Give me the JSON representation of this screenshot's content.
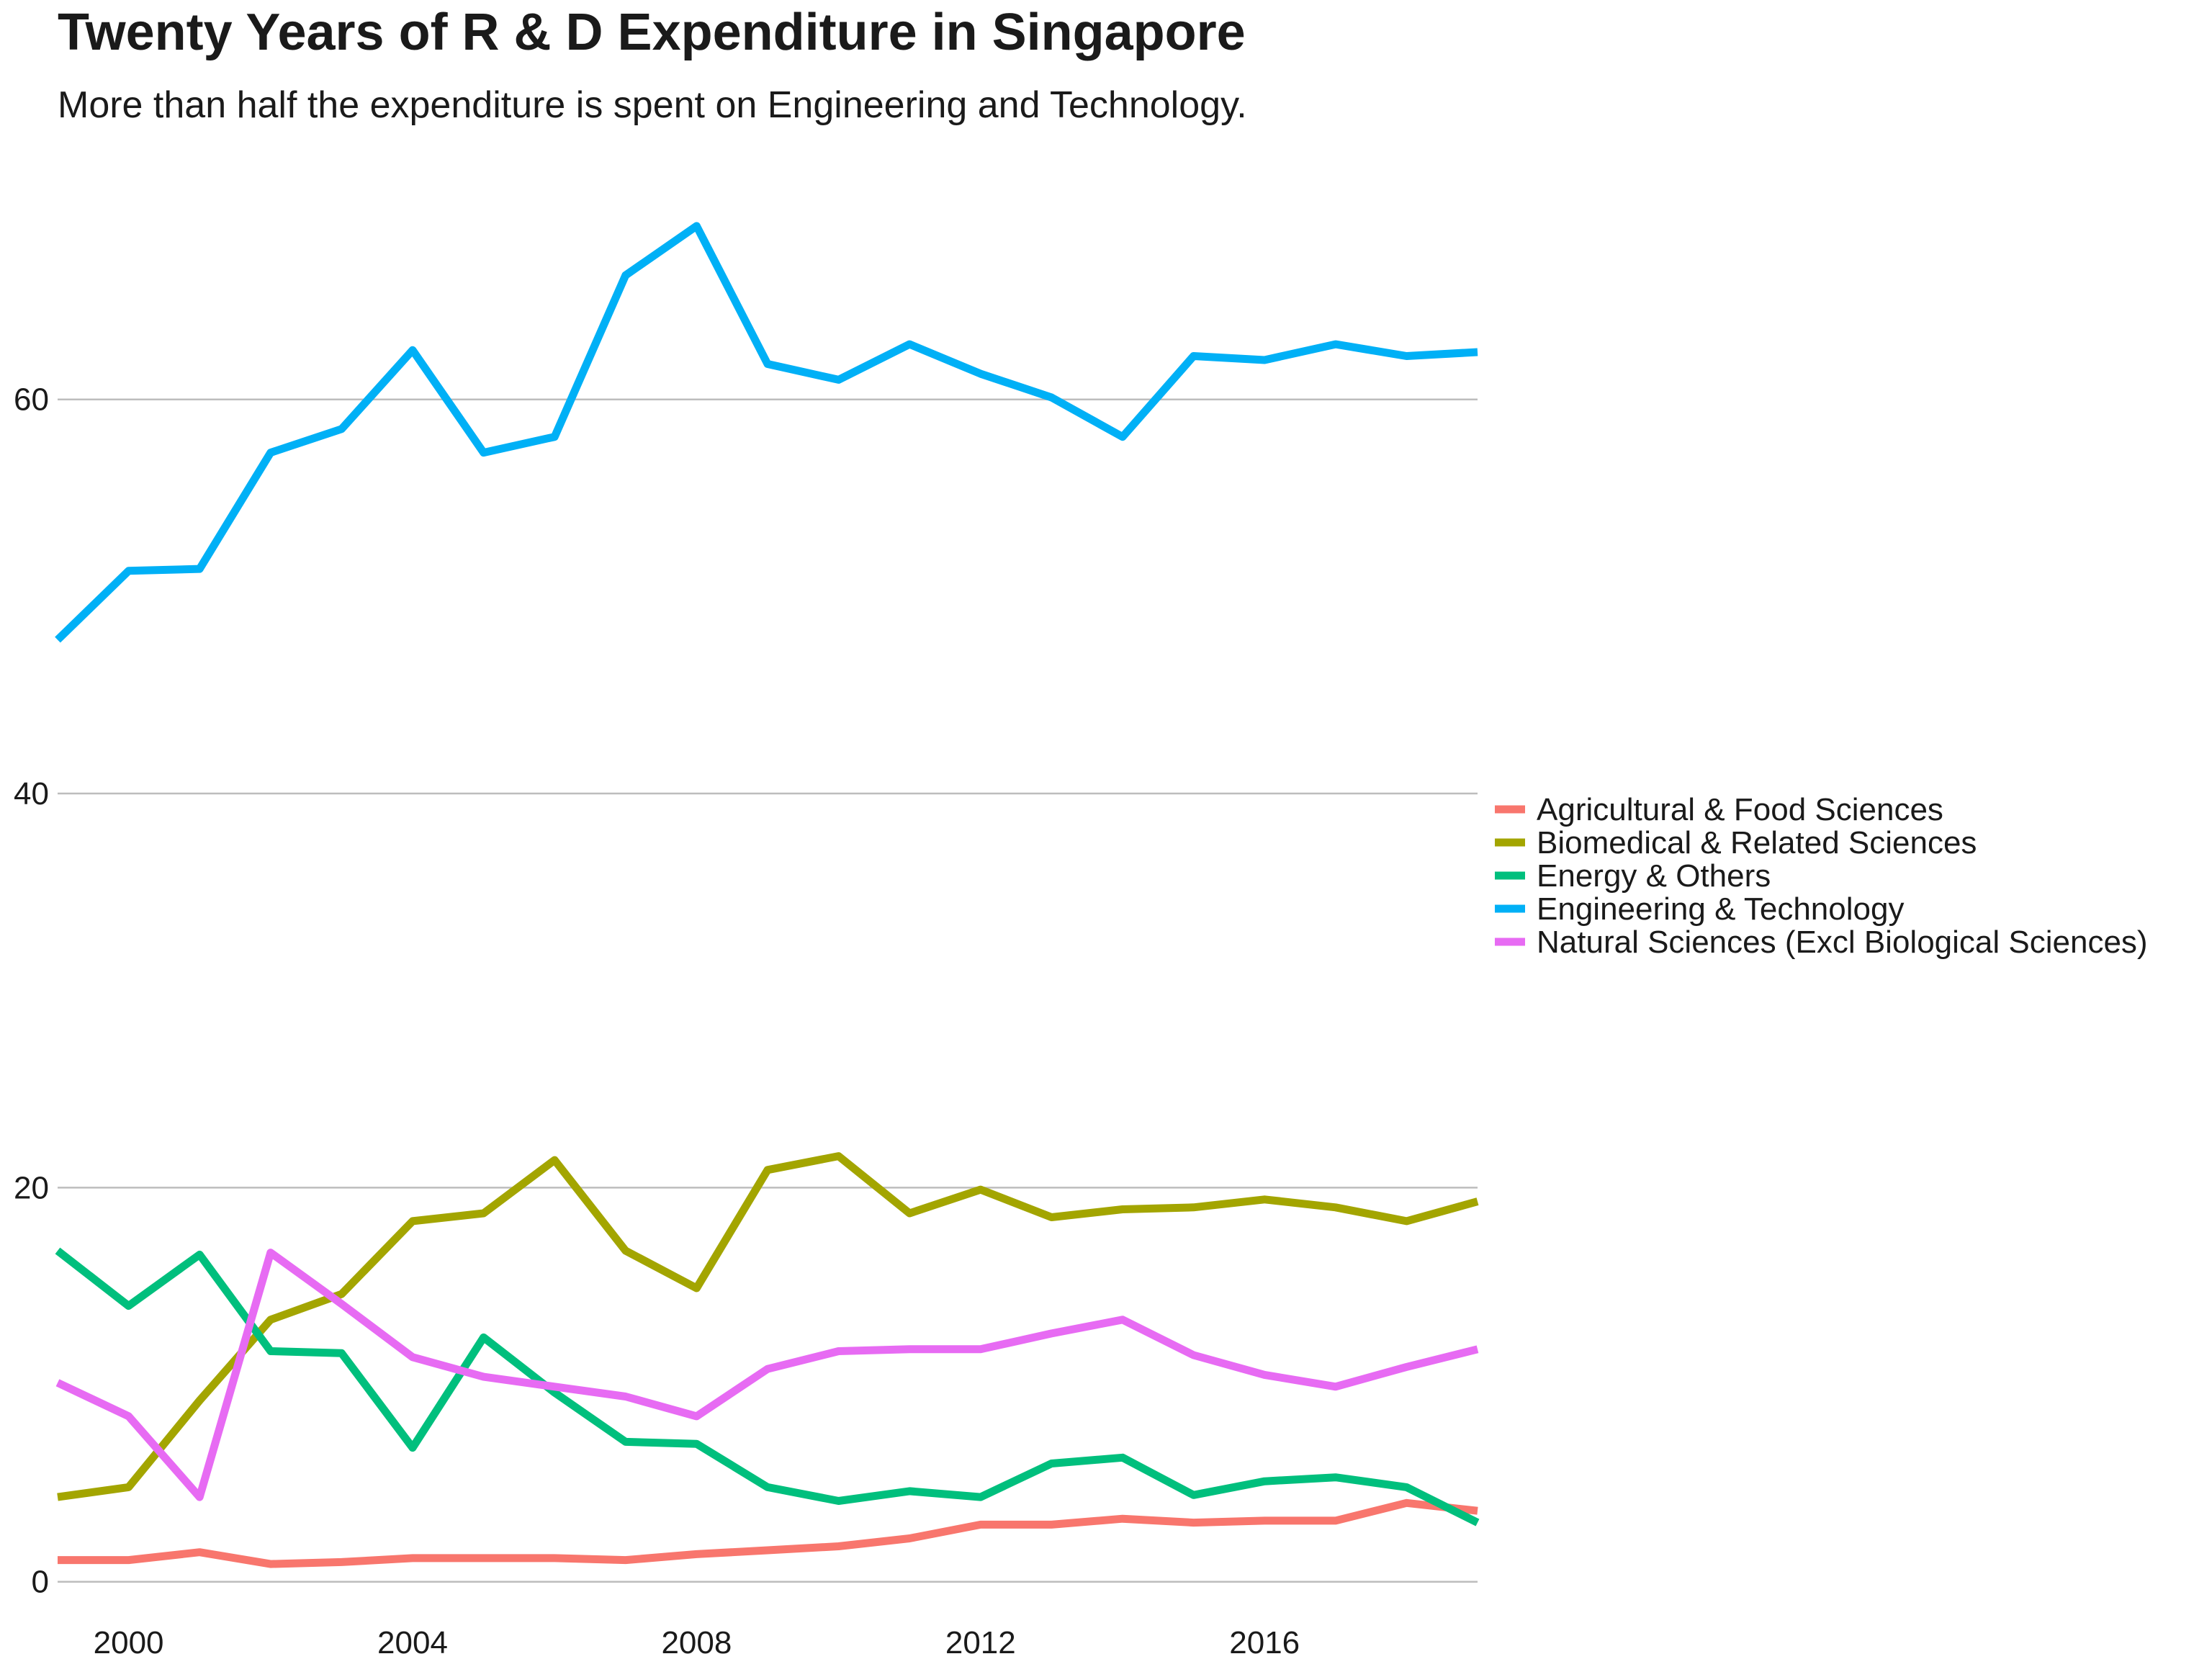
{
  "chart_data": {
    "type": "line",
    "title": "Twenty Years of R & D Expenditure in Singapore",
    "subtitle": "More than half the expenditure is spent on Engineering and Technology.",
    "xlabel": "",
    "ylabel": "",
    "x": [
      1999,
      2000,
      2001,
      2002,
      2003,
      2004,
      2005,
      2006,
      2007,
      2008,
      2009,
      2010,
      2011,
      2012,
      2013,
      2014,
      2015,
      2016,
      2017,
      2018,
      2019
    ],
    "xlim": [
      1999,
      2019
    ],
    "ylim": [
      -1.8,
      71.5
    ],
    "x_ticks": [
      2000,
      2004,
      2008,
      2012,
      2016
    ],
    "y_ticks": [
      0,
      20,
      40,
      60
    ],
    "grid": "horizontal major lines",
    "legend_position": "right",
    "series": [
      {
        "name": "Agricultural & Food Sciences",
        "color": "#F8766D",
        "values": [
          1.1,
          1.1,
          1.5,
          0.9,
          1.0,
          1.2,
          1.2,
          1.2,
          1.1,
          1.4,
          1.6,
          1.8,
          2.2,
          2.9,
          2.9,
          3.2,
          3.0,
          3.1,
          3.1,
          4.0,
          3.6
        ]
      },
      {
        "name": "Biomedical & Related Sciences",
        "color": "#A3A500",
        "values": [
          4.3,
          4.8,
          9.2,
          13.3,
          14.6,
          18.3,
          18.7,
          21.4,
          16.8,
          14.9,
          20.9,
          21.6,
          18.7,
          19.9,
          18.5,
          18.9,
          19.0,
          19.4,
          19.0,
          18.3,
          19.3
        ]
      },
      {
        "name": "Energy & Others",
        "color": "#00BF7D",
        "values": [
          16.8,
          14.0,
          16.6,
          11.7,
          11.6,
          6.8,
          12.4,
          9.6,
          7.1,
          7.0,
          4.8,
          4.1,
          4.6,
          4.3,
          6.0,
          6.3,
          4.4,
          5.1,
          5.3,
          4.8,
          3.0
        ]
      },
      {
        "name": "Engineering & Technology",
        "color": "#00B0F6",
        "values": [
          47.8,
          51.3,
          51.4,
          57.3,
          58.5,
          62.5,
          57.3,
          58.1,
          66.3,
          68.8,
          61.8,
          61.0,
          62.8,
          61.3,
          60.1,
          58.1,
          62.2,
          62.0,
          62.8,
          62.2,
          62.4
        ]
      },
      {
        "name": "Natural Sciences (Excl Biological Sciences)",
        "color": "#E76BF3",
        "values": [
          10.1,
          8.4,
          4.3,
          16.7,
          14.1,
          11.4,
          10.4,
          9.9,
          9.4,
          8.4,
          10.8,
          11.7,
          11.8,
          11.8,
          12.6,
          13.3,
          11.5,
          10.5,
          9.9,
          10.9,
          11.8
        ]
      }
    ]
  }
}
